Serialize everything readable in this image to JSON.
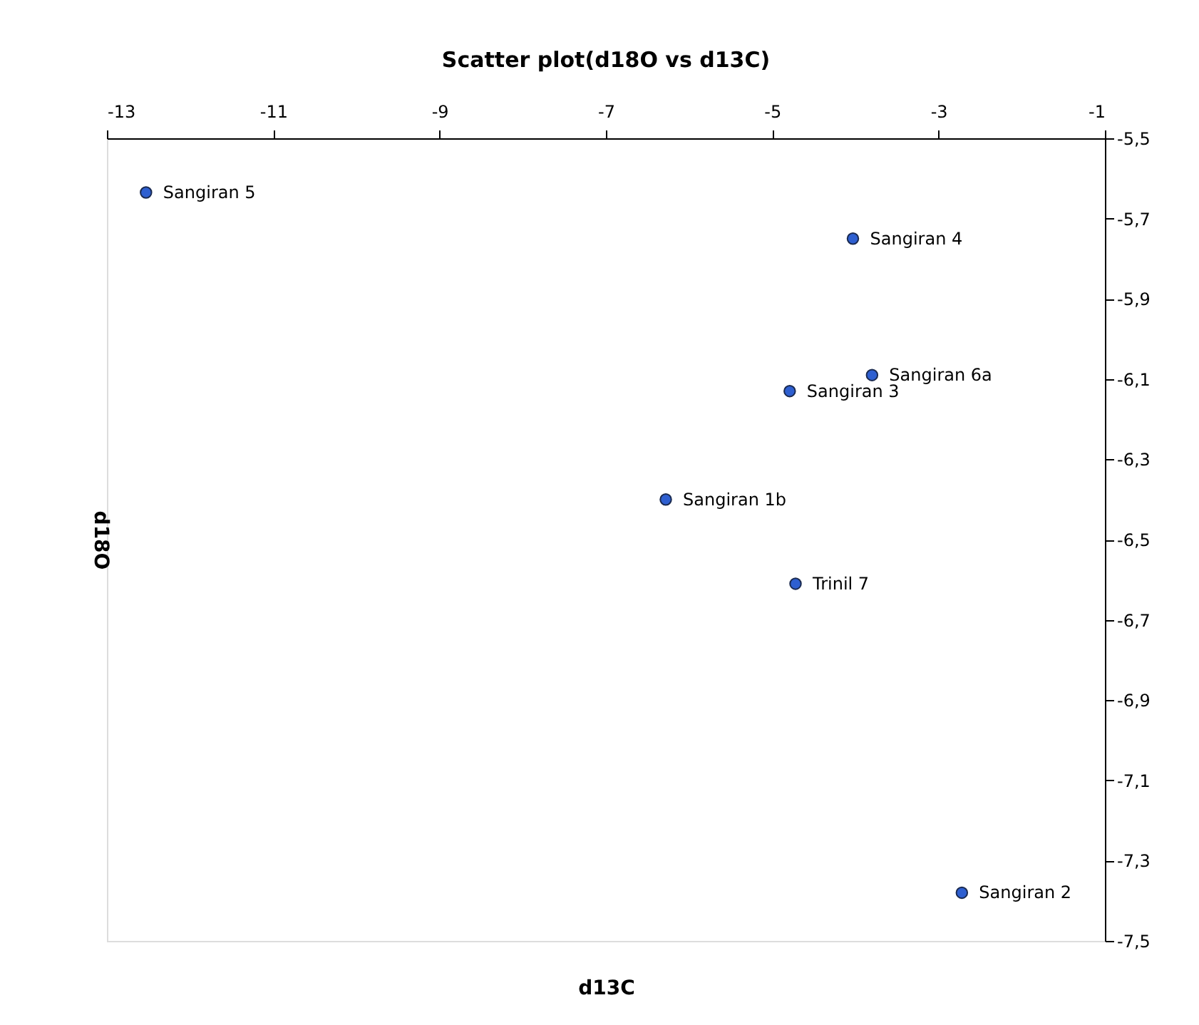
{
  "chart_data": {
    "type": "scatter",
    "title": "Scatter plot(d18O vs d13C)",
    "xlabel": "d13C",
    "ylabel": "d18O",
    "x": [
      -12.53,
      -4.03,
      -3.8,
      -4.79,
      -6.28,
      -4.72,
      -2.72
    ],
    "series": [
      {
        "color": "#2e5fd0",
        "values": [
          -5.635,
          -5.75,
          -6.09,
          -6.13,
          -6.4,
          -6.61,
          -7.38
        ]
      }
    ],
    "xlim": [
      -13,
      -1
    ],
    "ylim": [
      -7.5,
      -5.5
    ],
    "xticks": [
      -13,
      -11,
      -9,
      -7,
      -5,
      -3,
      -1
    ],
    "yticks": [
      {
        "value": -5.5,
        "label": "-5,5"
      },
      {
        "value": -5.7,
        "label": "-5,7"
      },
      {
        "value": -5.9,
        "label": "-5,9"
      },
      {
        "value": -6.1,
        "label": "-6,1"
      },
      {
        "value": -6.3,
        "label": "-6,3"
      },
      {
        "value": -6.5,
        "label": "-6,5"
      },
      {
        "value": -6.7,
        "label": "-6,7"
      },
      {
        "value": -6.9,
        "label": "-6,9"
      },
      {
        "value": -7.1,
        "label": "-7,1"
      },
      {
        "value": -7.3,
        "label": "-7,3"
      },
      {
        "value": -7.5,
        "label": "-7,5"
      }
    ],
    "annotations": [
      {
        "text": "Sangiran 5",
        "x": -12.53,
        "y": -5.635
      },
      {
        "text": "Sangiran 4",
        "x": -4.03,
        "y": -5.75
      },
      {
        "text": "Sangiran 6a",
        "x": -3.8,
        "y": -6.09
      },
      {
        "text": "Sangiran 3",
        "x": -4.79,
        "y": -6.13
      },
      {
        "text": "Sangiran 1b",
        "x": -6.28,
        "y": -6.4
      },
      {
        "text": "Trinil 7",
        "x": -4.72,
        "y": -6.61
      },
      {
        "text": "Sangiran 2",
        "x": -2.72,
        "y": -7.38
      }
    ],
    "grid": false,
    "marker": "circle"
  }
}
